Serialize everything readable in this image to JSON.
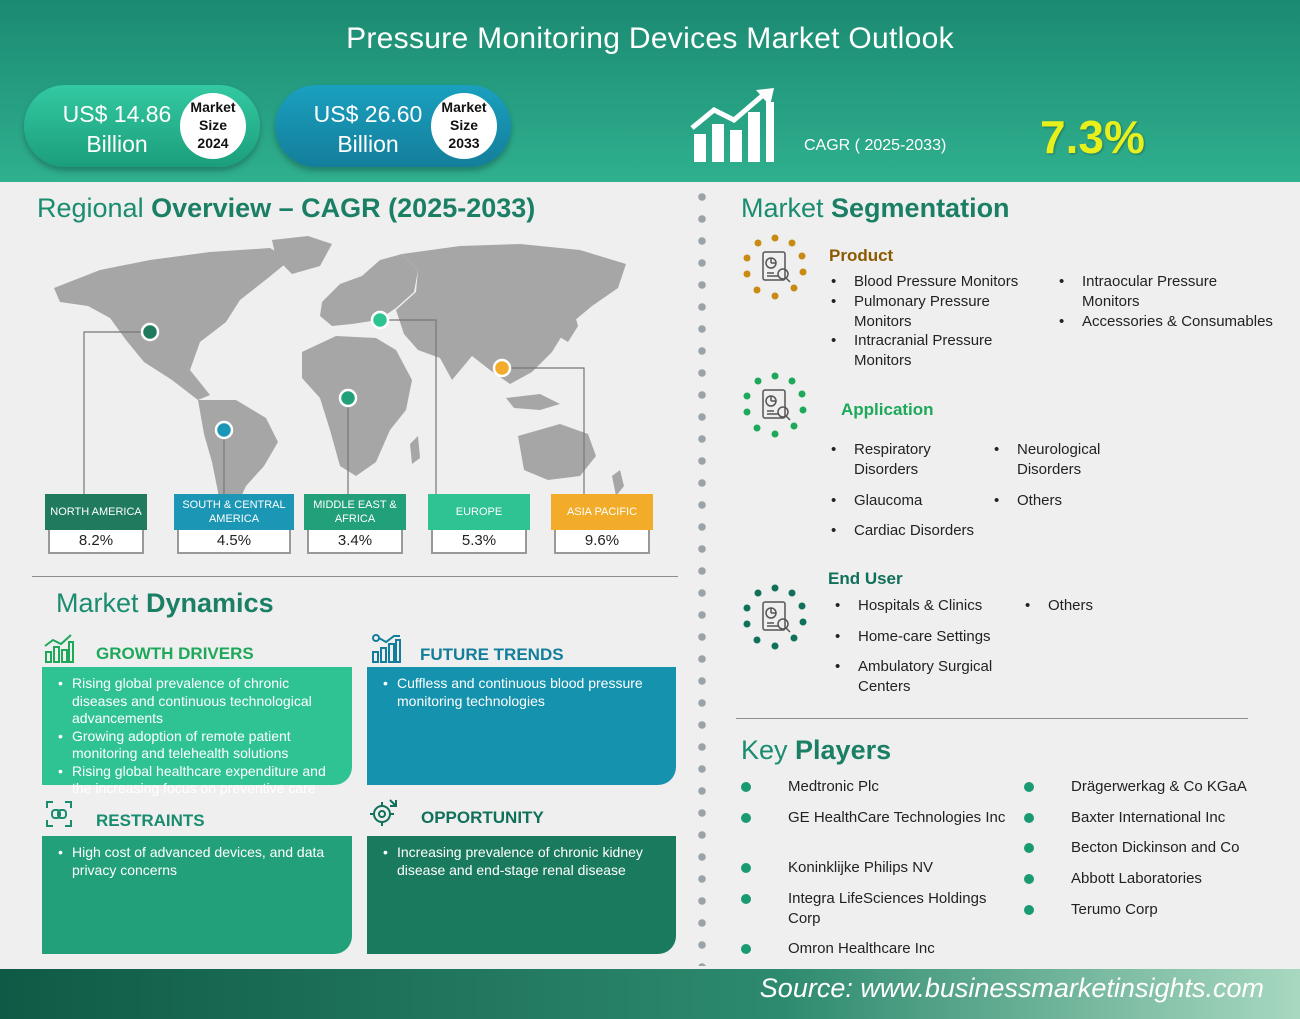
{
  "header": {
    "title": "Pressure Monitoring Devices Market Outlook",
    "size_2024": {
      "value_line1": "US$  14.86",
      "value_line2": "Billion",
      "label1": "Market",
      "label2": "Size",
      "year": "2024"
    },
    "size_2033": {
      "value_line1": "US$  26.60",
      "value_line2": "Billion",
      "label1": "Market",
      "label2": "Size",
      "year": "2033"
    },
    "cagr_label": "CAGR ( 2025-2033)",
    "cagr_value": "7.3%"
  },
  "regional": {
    "title_a": "Regional ",
    "title_b": "Overview – CAGR (2025-2033)",
    "regions": [
      {
        "name": "NORTH AMERICA",
        "value": "8.2%",
        "color": "#1f7a5e"
      },
      {
        "name": "SOUTH & CENTRAL AMERICA",
        "value": "4.5%",
        "color": "#1b97b5"
      },
      {
        "name": "MIDDLE EAST & AFRICA",
        "value": "3.4%",
        "color": "#22a07a"
      },
      {
        "name": "EUROPE",
        "value": "5.3%",
        "color": "#2fc394"
      },
      {
        "name": "ASIA PACIFIC",
        "value": "9.6%",
        "color": "#f3ac2a"
      }
    ]
  },
  "dynamics": {
    "title_a": "Market ",
    "title_b": "Dynamics",
    "growth_drivers": {
      "heading": "GROWTH DRIVERS",
      "items": [
        "Rising global prevalence of chronic diseases and continuous technological advancements",
        "Growing adoption of remote patient monitoring and telehealth solutions",
        "Rising global healthcare expenditure and the increasing focus on preventive care"
      ]
    },
    "future_trends": {
      "heading": "FUTURE TRENDS",
      "items": [
        "Cuffless and continuous blood pressure monitoring technologies"
      ]
    },
    "restraints": {
      "heading": "RESTRAINTS",
      "items": [
        "High cost of advanced devices, and data privacy concerns"
      ]
    },
    "opportunity": {
      "heading": "OPPORTUNITY",
      "items": [
        "Increasing prevalence of chronic kidney disease and end-stage renal disease"
      ]
    }
  },
  "segmentation": {
    "title_a": "Market ",
    "title_b": "Segmentation",
    "product": {
      "heading": "Product",
      "col1": [
        "Blood Pressure Monitors",
        "Pulmonary Pressure Monitors",
        "Intracranial Pressure Monitors"
      ],
      "col2": [
        "Intraocular Pressure Monitors",
        "Accessories & Consumables"
      ]
    },
    "application": {
      "heading": "Application",
      "col1": [
        "Respiratory Disorders",
        "Glaucoma",
        "Cardiac Disorders"
      ],
      "col2": [
        "Neurological Disorders",
        "Others"
      ]
    },
    "end_user": {
      "heading": "End User",
      "col1": [
        "Hospitals & Clinics",
        "Home-care Settings",
        "Ambulatory Surgical Centers"
      ],
      "col2": [
        "Others"
      ]
    }
  },
  "key_players": {
    "title_a": "Key ",
    "title_b": "Players",
    "col1": [
      "Medtronic Plc",
      "GE HealthCare Technologies Inc",
      "Koninklijke Philips NV",
      "Integra LifeSciences Holdings Corp",
      "Omron Healthcare Inc"
    ],
    "col2": [
      "Drägerwerkag & Co KGaA",
      "Baxter International Inc",
      "Becton Dickinson and Co",
      "Abbott Laboratories",
      "Terumo Corp"
    ]
  },
  "footer": {
    "source": "Source: www.businessmarketinsights.com"
  },
  "colors": {
    "brand_green": "#1a8c70",
    "cagr_yellow": "#e8f01c",
    "product_brown": "#8b5a00",
    "application_green": "#1da85a",
    "end_user_teal": "#10705a"
  }
}
